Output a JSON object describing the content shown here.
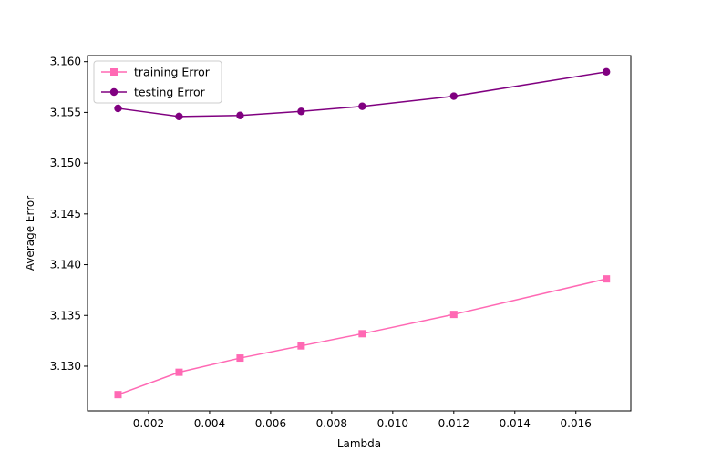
{
  "chart_data": {
    "type": "line",
    "xlabel": "Lambda",
    "ylabel": "Average Error",
    "xlim": [
      0.0,
      0.0178
    ],
    "ylim": [
      3.1256,
      3.1606
    ],
    "xticks": [
      0.002,
      0.004,
      0.006,
      0.008,
      0.01,
      0.012,
      0.014,
      0.016
    ],
    "xtick_labels": [
      "0.002",
      "0.004",
      "0.006",
      "0.008",
      "0.010",
      "0.012",
      "0.014",
      "0.016"
    ],
    "yticks": [
      3.13,
      3.135,
      3.14,
      3.145,
      3.15,
      3.155,
      3.16
    ],
    "ytick_labels": [
      "3.130",
      "3.135",
      "3.140",
      "3.145",
      "3.150",
      "3.155",
      "3.160"
    ],
    "grid": false,
    "legend_position": "top-left",
    "x": [
      0.001,
      0.003,
      0.005,
      0.007,
      0.009,
      0.012,
      0.017
    ],
    "series": [
      {
        "name": "training Error",
        "color": "#ff69b4",
        "marker": "square",
        "values": [
          3.1272,
          3.1294,
          3.1308,
          3.132,
          3.1332,
          3.1351,
          3.1386
        ]
      },
      {
        "name": "testing Error",
        "color": "#800080",
        "marker": "circle",
        "values": [
          3.1554,
          3.1546,
          3.1547,
          3.1551,
          3.1556,
          3.1566,
          3.159
        ]
      }
    ]
  }
}
